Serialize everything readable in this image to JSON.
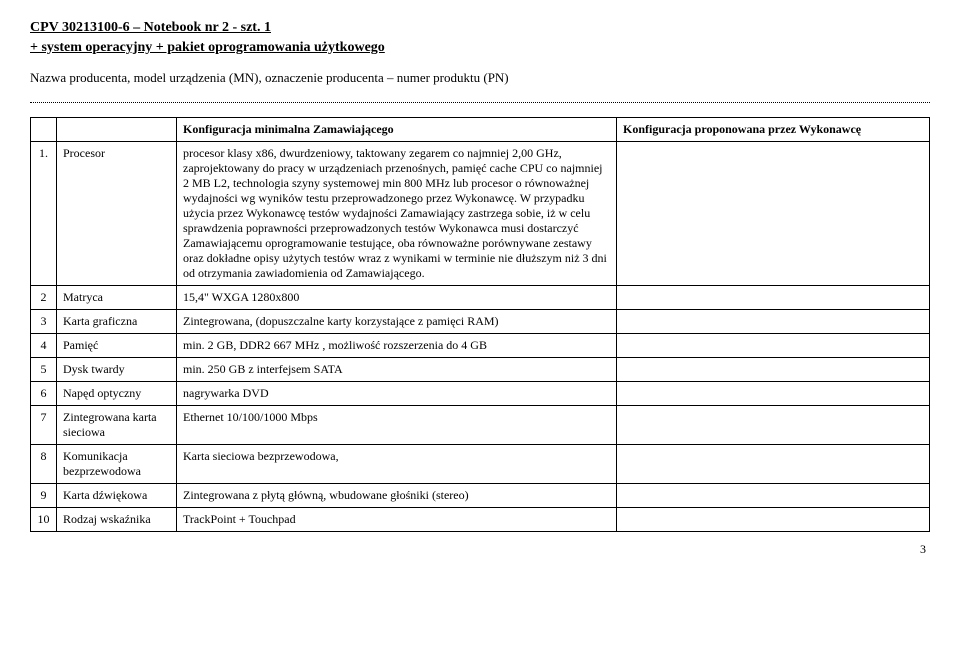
{
  "header": {
    "title": "CPV 30213100-6 – Notebook nr 2 - szt. 1",
    "subtitle": "+ system operacyjny + pakiet oprogramowania użytkowego",
    "producer_line": "Nazwa producenta, model urządzenia (MN), oznaczenie producenta – numer produktu (PN)"
  },
  "table": {
    "head_min": "Konfiguracja minimalna Zamawiającego",
    "head_prop": "Konfiguracja proponowana przez Wykonawcę",
    "rows": [
      {
        "n": "1.",
        "label": "Procesor",
        "spec": "procesor klasy x86, dwurdzeniowy, taktowany zegarem co najmniej 2,00 GHz, zaprojektowany do pracy w urządzeniach przenośnych, pamięć cache CPU co najmniej 2 MB L2, technologia szyny systemowej min 800 MHz lub procesor o równoważnej wydajności wg wyników testu przeprowadzonego przez Wykonawcę. W przypadku użycia przez Wykonawcę testów wydajności Zamawiający zastrzega sobie, iż w celu sprawdzenia poprawności przeprowadzonych testów Wykonawca musi dostarczyć Zamawiającemu oprogramowanie testujące, oba równoważne porównywane zestawy oraz dokładne opisy użytych testów wraz z wynikami w terminie nie dłuższym niż 3 dni od otrzymania zawiadomienia od Zamawiającego."
      },
      {
        "n": "2",
        "label": "Matryca",
        "spec": "15,4\" WXGA 1280x800"
      },
      {
        "n": "3",
        "label": "Karta graficzna",
        "spec": "Zintegrowana, (dopuszczalne karty korzystające z pamięci RAM)"
      },
      {
        "n": "4",
        "label": "Pamięć",
        "spec": "min. 2 GB, DDR2 667 MHz , możliwość rozszerzenia do 4 GB"
      },
      {
        "n": "5",
        "label": "Dysk twardy",
        "spec": "min. 250 GB z interfejsem SATA"
      },
      {
        "n": "6",
        "label": "Napęd optyczny",
        "spec": "nagrywarka DVD"
      },
      {
        "n": "7",
        "label": "Zintegrowana karta sieciowa",
        "spec": "Ethernet 10/100/1000 Mbps"
      },
      {
        "n": "8",
        "label": "Komunikacja bezprzewodowa",
        "spec": "Karta sieciowa bezprzewodowa,"
      },
      {
        "n": "9",
        "label": "Karta dźwiękowa",
        "spec": "Zintegrowana z płytą główną, wbudowane głośniki (stereo)"
      },
      {
        "n": "10",
        "label": "Rodzaj wskaźnika",
        "spec": "TrackPoint + Touchpad"
      }
    ]
  },
  "page_number": "3"
}
